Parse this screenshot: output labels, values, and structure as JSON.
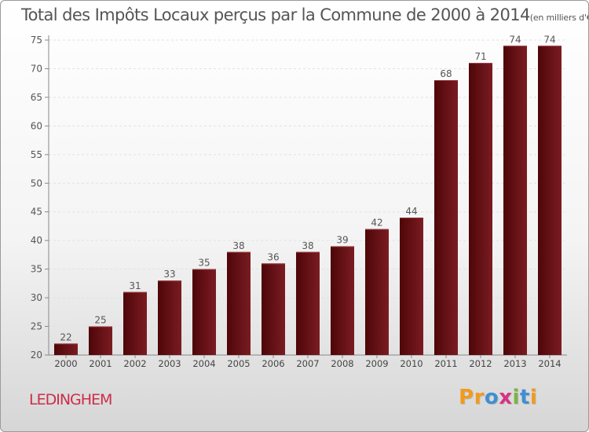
{
  "chart_data": {
    "type": "bar",
    "title": "Total des Impôts Locaux perçus par la Commune de 2000 à 2014",
    "subtitle": "(en milliers d'€)",
    "categories": [
      "2000",
      "2001",
      "2002",
      "2003",
      "2004",
      "2005",
      "2006",
      "2007",
      "2008",
      "2009",
      "2010",
      "2011",
      "2012",
      "2013",
      "2014"
    ],
    "values": [
      22,
      25,
      31,
      33,
      35,
      38,
      36,
      38,
      39,
      42,
      44,
      68,
      71,
      74,
      74
    ],
    "ylim": [
      20,
      75
    ],
    "yticks": [
      20,
      25,
      30,
      35,
      40,
      45,
      50,
      55,
      60,
      65,
      70,
      75
    ],
    "grid": true,
    "bar_color": "#7a1a1f",
    "xlabel": "",
    "ylabel": ""
  },
  "footer": {
    "commune": "LEDINGHEM",
    "logo_letters": [
      "P",
      "r",
      "o",
      "x",
      "i",
      "t",
      "i"
    ],
    "logo_colors": [
      "#f29a1f",
      "#f29a1f",
      "#3f8fd2",
      "#d63384",
      "#7cb342",
      "#3f8fd2",
      "#f29a1f"
    ]
  }
}
